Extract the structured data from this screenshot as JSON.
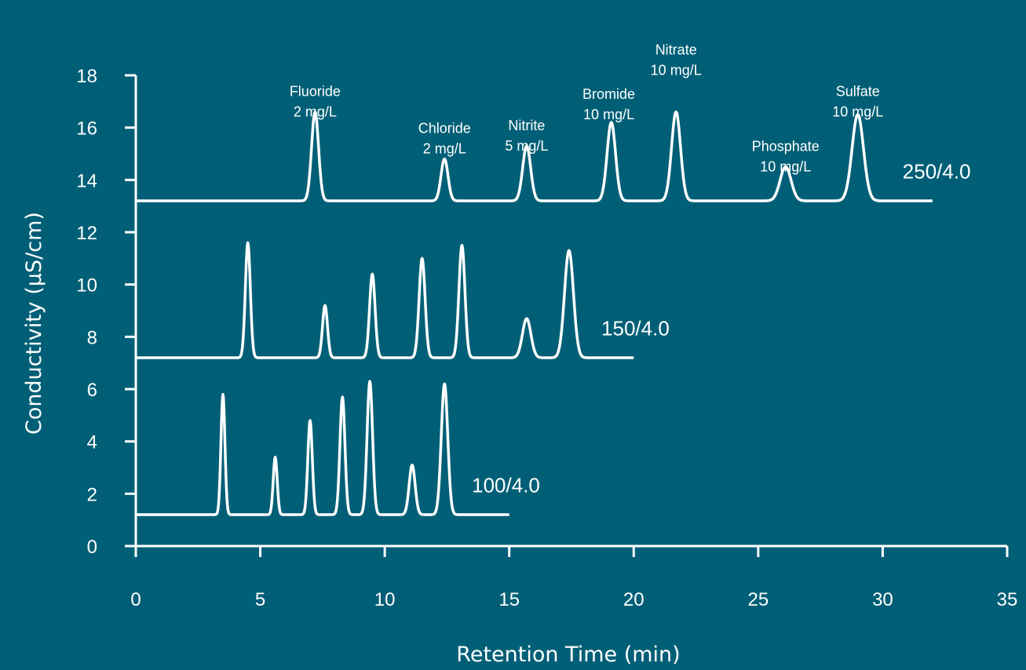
{
  "colors": {
    "background": "#005f76",
    "foreground": "#ffffff"
  },
  "chart_data": {
    "type": "line",
    "xlabel": "Retention Time (min)",
    "ylabel": "Conductivity (μS/cm)",
    "xlim": [
      0,
      35
    ],
    "ylim": [
      0,
      18
    ],
    "xticks": [
      0,
      5,
      10,
      15,
      20,
      25,
      30,
      35
    ],
    "yticks": [
      0,
      2,
      4,
      6,
      8,
      10,
      12,
      14,
      16,
      18
    ],
    "grid": false,
    "legend": "none",
    "peak_labels": [
      {
        "name": "Fluoride",
        "conc": "2 mg/L",
        "x": 7.2,
        "y": 17.2
      },
      {
        "name": "Chloride",
        "conc": "2 mg/L",
        "x": 12.4,
        "y": 15.8
      },
      {
        "name": "Nitrite",
        "conc": "5 mg/L",
        "x": 15.7,
        "y": 15.9
      },
      {
        "name": "Bromide",
        "conc": "10 mg/L",
        "x": 19.0,
        "y": 17.1
      },
      {
        "name": "Nitrate",
        "conc": "10 mg/L",
        "x": 21.7,
        "y": 18.8
      },
      {
        "name": "Phosphate",
        "conc": "10 mg/L",
        "x": 26.1,
        "y": 15.1
      },
      {
        "name": "Sulfate",
        "conc": "10 mg/L",
        "x": 29.0,
        "y": 17.2
      }
    ],
    "series": [
      {
        "name": "250/4.0",
        "label_x": 30.8,
        "label_y": 14.05,
        "baseline": 13.2,
        "x_start": 0.0,
        "x_end": 32.0,
        "peaks": [
          {
            "rt": 7.2,
            "height": 16.6,
            "width": 0.14
          },
          {
            "rt": 12.4,
            "height": 14.8,
            "width": 0.14
          },
          {
            "rt": 15.7,
            "height": 15.3,
            "width": 0.16
          },
          {
            "rt": 19.1,
            "height": 16.2,
            "width": 0.17
          },
          {
            "rt": 21.7,
            "height": 16.6,
            "width": 0.18
          },
          {
            "rt": 26.1,
            "height": 14.5,
            "width": 0.22
          },
          {
            "rt": 29.0,
            "height": 16.5,
            "width": 0.23
          }
        ]
      },
      {
        "name": "150/4.0",
        "label_x": 18.7,
        "label_y": 8.05,
        "baseline": 7.2,
        "x_start": 0.0,
        "x_end": 20.0,
        "peaks": [
          {
            "rt": 4.5,
            "height": 11.6,
            "width": 0.1
          },
          {
            "rt": 7.6,
            "height": 9.2,
            "width": 0.1
          },
          {
            "rt": 9.5,
            "height": 10.4,
            "width": 0.11
          },
          {
            "rt": 11.5,
            "height": 11.0,
            "width": 0.12
          },
          {
            "rt": 13.1,
            "height": 11.5,
            "width": 0.12
          },
          {
            "rt": 15.7,
            "height": 8.7,
            "width": 0.17
          },
          {
            "rt": 17.4,
            "height": 11.3,
            "width": 0.18
          }
        ]
      },
      {
        "name": "100/4.0",
        "label_x": 13.5,
        "label_y": 2.05,
        "baseline": 1.2,
        "x_start": 0.0,
        "x_end": 15.0,
        "peaks": [
          {
            "rt": 3.5,
            "height": 5.8,
            "width": 0.08
          },
          {
            "rt": 5.6,
            "height": 3.4,
            "width": 0.08
          },
          {
            "rt": 7.0,
            "height": 4.8,
            "width": 0.09
          },
          {
            "rt": 8.3,
            "height": 5.7,
            "width": 0.1
          },
          {
            "rt": 9.4,
            "height": 6.3,
            "width": 0.11
          },
          {
            "rt": 11.1,
            "height": 3.1,
            "width": 0.12
          },
          {
            "rt": 12.4,
            "height": 6.2,
            "width": 0.13
          }
        ]
      }
    ]
  }
}
